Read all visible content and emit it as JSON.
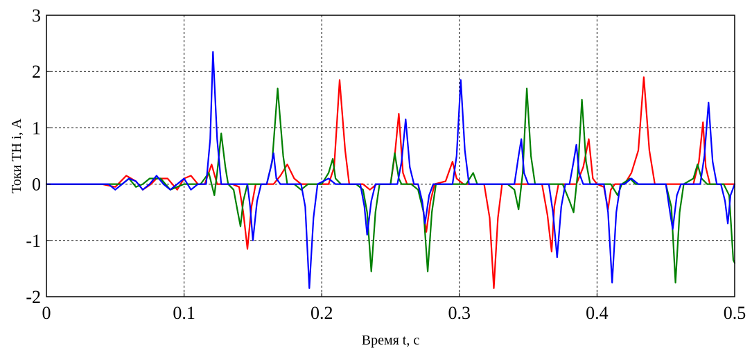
{
  "chart_data": {
    "type": "line",
    "xlabel": "Время t, с",
    "ylabel": "Токи ТН i, А",
    "xlim": [
      0,
      0.5
    ],
    "ylim": [
      -2,
      3
    ],
    "xticks": [
      0,
      0.1,
      0.2,
      0.3,
      0.4,
      0.5
    ],
    "yticks": [
      -2,
      -1,
      0,
      1,
      2,
      3
    ],
    "xtick_labels": [
      "0",
      "0.1",
      "0.2",
      "0.3",
      "0.4",
      "0.5"
    ],
    "ytick_labels": [
      "-2",
      "-1",
      "0",
      "1",
      "2",
      "3"
    ],
    "grid": "dashed",
    "series": [
      {
        "color": "#ff0000",
        "points": [
          [
            0,
            0
          ],
          [
            0.04,
            0
          ],
          [
            0.05,
            -0.05
          ],
          [
            0.058,
            0.15
          ],
          [
            0.065,
            0.05
          ],
          [
            0.07,
            -0.1
          ],
          [
            0.076,
            0
          ],
          [
            0.08,
            0.1
          ],
          [
            0.088,
            0.1
          ],
          [
            0.095,
            -0.1
          ],
          [
            0.1,
            0.1
          ],
          [
            0.105,
            0.15
          ],
          [
            0.11,
            0
          ],
          [
            0.115,
            0
          ],
          [
            0.12,
            0.35
          ],
          [
            0.124,
            0
          ],
          [
            0.135,
            0
          ],
          [
            0.14,
            -0.05
          ],
          [
            0.143,
            -0.5
          ],
          [
            0.146,
            -1.15
          ],
          [
            0.149,
            -0.4
          ],
          [
            0.152,
            0
          ],
          [
            0.165,
            0
          ],
          [
            0.17,
            0.15
          ],
          [
            0.175,
            0.35
          ],
          [
            0.18,
            0.1
          ],
          [
            0.185,
            0
          ],
          [
            0.205,
            0
          ],
          [
            0.209,
            0.3
          ],
          [
            0.213,
            1.85
          ],
          [
            0.217,
            0.6
          ],
          [
            0.22,
            0
          ],
          [
            0.23,
            0
          ],
          [
            0.235,
            -0.1
          ],
          [
            0.24,
            0
          ],
          [
            0.25,
            0
          ],
          [
            0.253,
            0.5
          ],
          [
            0.256,
            1.25
          ],
          [
            0.259,
            0.2
          ],
          [
            0.262,
            0
          ],
          [
            0.27,
            0
          ],
          [
            0.273,
            -0.35
          ],
          [
            0.276,
            -0.85
          ],
          [
            0.279,
            -0.3
          ],
          [
            0.282,
            0
          ],
          [
            0.29,
            0.05
          ],
          [
            0.295,
            0.4
          ],
          [
            0.298,
            0.1
          ],
          [
            0.303,
            0
          ],
          [
            0.318,
            0
          ],
          [
            0.322,
            -0.6
          ],
          [
            0.325,
            -1.85
          ],
          [
            0.328,
            -0.6
          ],
          [
            0.331,
            0
          ],
          [
            0.36,
            0
          ],
          [
            0.364,
            -0.55
          ],
          [
            0.367,
            -1.2
          ],
          [
            0.369,
            -0.4
          ],
          [
            0.372,
            0
          ],
          [
            0.385,
            0
          ],
          [
            0.39,
            0.3
          ],
          [
            0.394,
            0.8
          ],
          [
            0.397,
            0.1
          ],
          [
            0.4,
            0
          ],
          [
            0.405,
            -0.05
          ],
          [
            0.408,
            -0.45
          ],
          [
            0.41,
            -0.1
          ],
          [
            0.413,
            0
          ],
          [
            0.42,
            0
          ],
          [
            0.425,
            0.2
          ],
          [
            0.43,
            0.6
          ],
          [
            0.434,
            1.9
          ],
          [
            0.438,
            0.6
          ],
          [
            0.442,
            0
          ],
          [
            0.47,
            0
          ],
          [
            0.474,
            0.4
          ],
          [
            0.477,
            1.1
          ],
          [
            0.479,
            0.3
          ],
          [
            0.482,
            0
          ],
          [
            0.5,
            0
          ]
        ]
      },
      {
        "color": "#008000",
        "points": [
          [
            0,
            0
          ],
          [
            0.055,
            0
          ],
          [
            0.06,
            0.1
          ],
          [
            0.065,
            -0.05
          ],
          [
            0.07,
            0
          ],
          [
            0.075,
            0.1
          ],
          [
            0.083,
            0.1
          ],
          [
            0.09,
            -0.1
          ],
          [
            0.1,
            0
          ],
          [
            0.112,
            0
          ],
          [
            0.118,
            0.2
          ],
          [
            0.122,
            -0.2
          ],
          [
            0.124,
            0.2
          ],
          [
            0.127,
            0.9
          ],
          [
            0.13,
            0.3
          ],
          [
            0.132,
            0
          ],
          [
            0.136,
            -0.1
          ],
          [
            0.139,
            -0.5
          ],
          [
            0.141,
            -0.75
          ],
          [
            0.143,
            -0.3
          ],
          [
            0.146,
            0
          ],
          [
            0.16,
            0
          ],
          [
            0.164,
            0.4
          ],
          [
            0.168,
            1.7
          ],
          [
            0.172,
            0.5
          ],
          [
            0.175,
            0
          ],
          [
            0.18,
            0
          ],
          [
            0.185,
            -0.1
          ],
          [
            0.19,
            0
          ],
          [
            0.2,
            0
          ],
          [
            0.205,
            0.2
          ],
          [
            0.208,
            0.45
          ],
          [
            0.21,
            0.1
          ],
          [
            0.214,
            0
          ],
          [
            0.225,
            0
          ],
          [
            0.23,
            -0.1
          ],
          [
            0.233,
            -0.5
          ],
          [
            0.236,
            -1.55
          ],
          [
            0.239,
            -0.5
          ],
          [
            0.242,
            0
          ],
          [
            0.25,
            0
          ],
          [
            0.253,
            0.55
          ],
          [
            0.256,
            0.1
          ],
          [
            0.258,
            0
          ],
          [
            0.265,
            0
          ],
          [
            0.27,
            -0.1
          ],
          [
            0.274,
            -0.5
          ],
          [
            0.277,
            -1.55
          ],
          [
            0.28,
            -0.5
          ],
          [
            0.283,
            0
          ],
          [
            0.305,
            0
          ],
          [
            0.31,
            0.2
          ],
          [
            0.313,
            0
          ],
          [
            0.335,
            0
          ],
          [
            0.34,
            -0.1
          ],
          [
            0.343,
            -0.45
          ],
          [
            0.346,
            0.2
          ],
          [
            0.349,
            1.7
          ],
          [
            0.352,
            0.5
          ],
          [
            0.355,
            0
          ],
          [
            0.375,
            0
          ],
          [
            0.38,
            -0.3
          ],
          [
            0.383,
            -0.5
          ],
          [
            0.386,
            0.2
          ],
          [
            0.389,
            1.5
          ],
          [
            0.392,
            0.4
          ],
          [
            0.395,
            0
          ],
          [
            0.41,
            0
          ],
          [
            0.415,
            -0.2
          ],
          [
            0.418,
            0
          ],
          [
            0.424,
            0.1
          ],
          [
            0.428,
            0
          ],
          [
            0.45,
            0
          ],
          [
            0.454,
            -0.4
          ],
          [
            0.457,
            -1.75
          ],
          [
            0.46,
            -0.5
          ],
          [
            0.463,
            0
          ],
          [
            0.47,
            0.1
          ],
          [
            0.473,
            0.35
          ],
          [
            0.476,
            0.1
          ],
          [
            0.48,
            0
          ],
          [
            0.492,
            0
          ],
          [
            0.496,
            -0.2
          ],
          [
            0.499,
            -1.35
          ],
          [
            0.5,
            -1.4
          ]
        ]
      },
      {
        "color": "#0000ff",
        "points": [
          [
            0,
            0
          ],
          [
            0.045,
            0
          ],
          [
            0.05,
            -0.1
          ],
          [
            0.055,
            0
          ],
          [
            0.06,
            0.1
          ],
          [
            0.065,
            0.05
          ],
          [
            0.07,
            -0.1
          ],
          [
            0.075,
            0
          ],
          [
            0.08,
            0.15
          ],
          [
            0.085,
            0
          ],
          [
            0.09,
            -0.1
          ],
          [
            0.095,
            0
          ],
          [
            0.1,
            0.1
          ],
          [
            0.105,
            -0.1
          ],
          [
            0.11,
            0
          ],
          [
            0.116,
            0
          ],
          [
            0.119,
            0.8
          ],
          [
            0.121,
            2.35
          ],
          [
            0.124,
            0.8
          ],
          [
            0.127,
            0
          ],
          [
            0.146,
            0
          ],
          [
            0.148,
            -0.4
          ],
          [
            0.15,
            -1.0
          ],
          [
            0.153,
            -0.3
          ],
          [
            0.156,
            0
          ],
          [
            0.16,
            0
          ],
          [
            0.163,
            0.3
          ],
          [
            0.165,
            0.55
          ],
          [
            0.167,
            0.1
          ],
          [
            0.17,
            0
          ],
          [
            0.185,
            0
          ],
          [
            0.188,
            -0.4
          ],
          [
            0.191,
            -1.85
          ],
          [
            0.194,
            -0.6
          ],
          [
            0.197,
            0
          ],
          [
            0.205,
            0.1
          ],
          [
            0.21,
            0
          ],
          [
            0.228,
            0
          ],
          [
            0.231,
            -0.4
          ],
          [
            0.233,
            -0.9
          ],
          [
            0.236,
            -0.3
          ],
          [
            0.239,
            0
          ],
          [
            0.255,
            0
          ],
          [
            0.258,
            0.4
          ],
          [
            0.261,
            1.15
          ],
          [
            0.264,
            0.3
          ],
          [
            0.267,
            0
          ],
          [
            0.27,
            0
          ],
          [
            0.273,
            -0.3
          ],
          [
            0.275,
            -0.7
          ],
          [
            0.278,
            -0.2
          ],
          [
            0.281,
            0
          ],
          [
            0.295,
            0
          ],
          [
            0.298,
            0.5
          ],
          [
            0.301,
            1.85
          ],
          [
            0.304,
            0.6
          ],
          [
            0.307,
            0
          ],
          [
            0.34,
            0
          ],
          [
            0.343,
            0.5
          ],
          [
            0.345,
            0.8
          ],
          [
            0.347,
            0.2
          ],
          [
            0.35,
            0
          ],
          [
            0.365,
            0
          ],
          [
            0.368,
            -0.5
          ],
          [
            0.371,
            -1.3
          ],
          [
            0.374,
            -0.4
          ],
          [
            0.377,
            0
          ],
          [
            0.38,
            0
          ],
          [
            0.383,
            0.4
          ],
          [
            0.385,
            0.7
          ],
          [
            0.387,
            0.2
          ],
          [
            0.39,
            0
          ],
          [
            0.405,
            0
          ],
          [
            0.408,
            -0.5
          ],
          [
            0.411,
            -1.75
          ],
          [
            0.414,
            -0.5
          ],
          [
            0.417,
            0
          ],
          [
            0.42,
            0
          ],
          [
            0.425,
            0.1
          ],
          [
            0.43,
            0
          ],
          [
            0.45,
            0
          ],
          [
            0.453,
            -0.5
          ],
          [
            0.455,
            -0.8
          ],
          [
            0.458,
            -0.2
          ],
          [
            0.461,
            0
          ],
          [
            0.475,
            0
          ],
          [
            0.478,
            0.5
          ],
          [
            0.481,
            1.45
          ],
          [
            0.484,
            0.4
          ],
          [
            0.487,
            0
          ],
          [
            0.49,
            0
          ],
          [
            0.493,
            -0.3
          ],
          [
            0.495,
            -0.7
          ],
          [
            0.497,
            -0.2
          ],
          [
            0.5,
            0
          ]
        ]
      }
    ]
  }
}
